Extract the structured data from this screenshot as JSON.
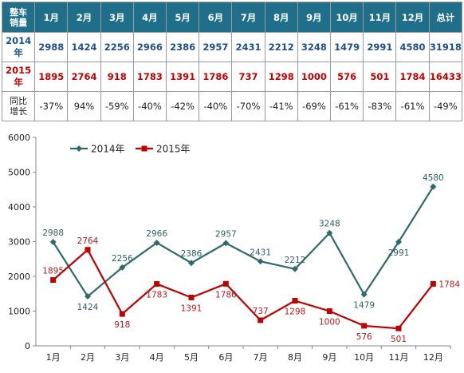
{
  "table": {
    "corner": "整车\n销量",
    "months": [
      "1月",
      "2月",
      "3月",
      "4月",
      "5月",
      "6月",
      "7月",
      "8月",
      "9月",
      "10月",
      "11月",
      "12月",
      "总计"
    ],
    "rows": [
      {
        "label": "2014年",
        "values": [
          "2988",
          "1424",
          "2256",
          "2966",
          "2386",
          "2957",
          "2431",
          "2212",
          "3248",
          "1479",
          "2991",
          "4580",
          "31918"
        ]
      },
      {
        "label": "2015年",
        "values": [
          "1895",
          "2764",
          "918",
          "1783",
          "1391",
          "1786",
          "737",
          "1298",
          "1000",
          "576",
          "501",
          "1784",
          "16433"
        ]
      },
      {
        "label": "同比\n增长",
        "values": [
          "-37%",
          "94%",
          "-59%",
          "-40%",
          "-42%",
          "-40%",
          "-70%",
          "-41%",
          "-69%",
          "-61%",
          "-83%",
          "-61%",
          "-49%"
        ]
      }
    ]
  },
  "chart_data": {
    "type": "line",
    "categories": [
      "1月",
      "2月",
      "3月",
      "4月",
      "5月",
      "6月",
      "7月",
      "8月",
      "9月",
      "10月",
      "11月",
      "12月"
    ],
    "series": [
      {
        "name": "2014年",
        "color": "#2f6b68",
        "marker": "diamond",
        "values": [
          2988,
          1424,
          2256,
          2966,
          2386,
          2957,
          2431,
          2212,
          3248,
          1479,
          2991,
          4580
        ]
      },
      {
        "name": "2015年",
        "color": "#c00000",
        "marker": "square",
        "values": [
          1895,
          2764,
          918,
          1783,
          1391,
          1786,
          737,
          1298,
          1000,
          576,
          501,
          1784
        ]
      }
    ],
    "yticks": [
      0,
      1000,
      2000,
      3000,
      4000,
      5000,
      6000
    ],
    "ylim": [
      0,
      6000
    ],
    "legend": "top-left",
    "grid": false
  }
}
